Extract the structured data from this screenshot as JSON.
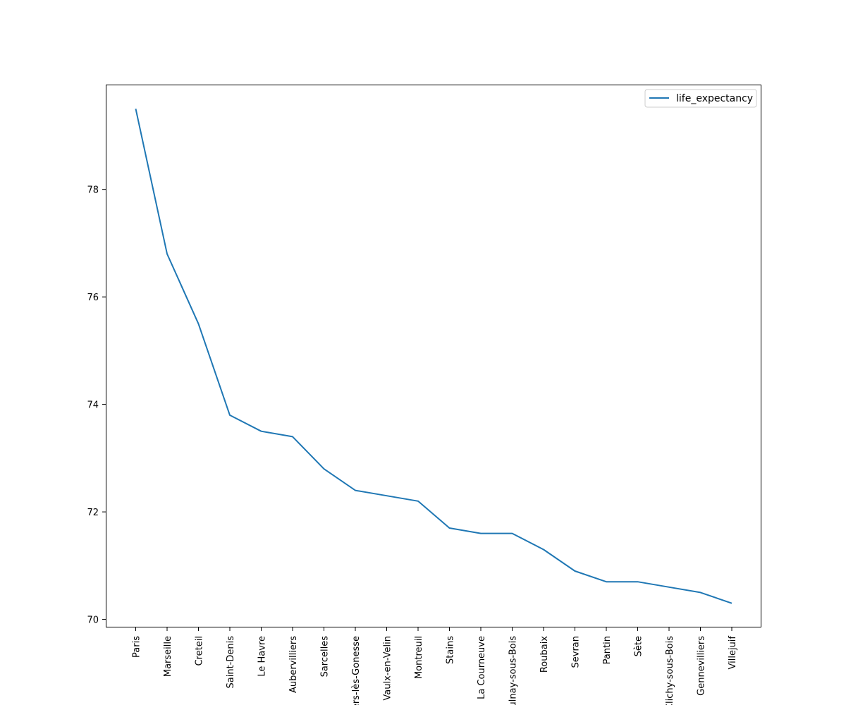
{
  "chart_data": {
    "type": "line",
    "title": "",
    "xlabel": "",
    "ylabel": "",
    "categories": [
      "Paris",
      "Marseille",
      "Creteil",
      "Saint-Denis",
      "Le Havre",
      "Aubervilliers",
      "Sarcelles",
      "Villiers-lès-Gonesse",
      "Vaulx-en-Velin",
      "Montreuil",
      "Stains",
      "La Courneuve",
      "Aulnay-sous-Bois",
      "Roubaix",
      "Sevran",
      "Pantin",
      "Sète",
      "Clichy-sous-Bois",
      "Gennevilliers",
      "Villejuif"
    ],
    "series": [
      {
        "name": "life_expectancy",
        "color": "#1f77b4",
        "values": [
          79.5,
          76.8,
          75.5,
          73.8,
          73.5,
          73.4,
          72.8,
          72.4,
          72.3,
          72.2,
          71.7,
          71.6,
          71.6,
          71.3,
          70.9,
          70.7,
          70.7,
          70.6,
          70.5,
          70.3
        ]
      }
    ],
    "yticks": [
      70,
      72,
      74,
      76,
      78
    ],
    "ylim": [
      69.85,
      79.95
    ],
    "grid": false,
    "legend_position": "top-right"
  }
}
